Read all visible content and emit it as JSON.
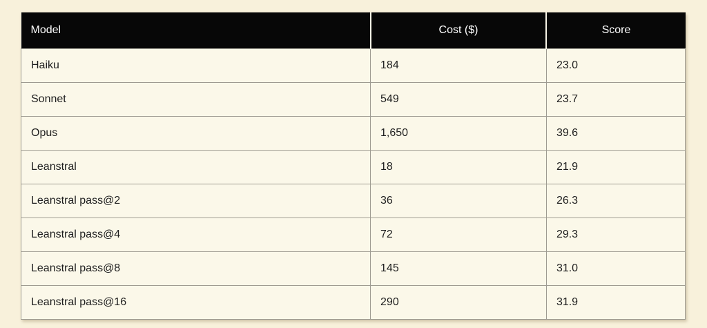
{
  "chart_data": {
    "type": "table",
    "columns": [
      "Model",
      "Cost ($)",
      "Score"
    ],
    "rows": [
      [
        "Haiku",
        "184",
        "23.0"
      ],
      [
        "Sonnet",
        "549",
        "23.7"
      ],
      [
        "Opus",
        "1,650",
        "39.6"
      ],
      [
        "Leanstral",
        "18",
        "21.9"
      ],
      [
        "Leanstral pass@2",
        "36",
        "26.3"
      ],
      [
        "Leanstral pass@4",
        "72",
        "29.3"
      ],
      [
        "Leanstral pass@8",
        "145",
        "31.0"
      ],
      [
        "Leanstral pass@16",
        "290",
        "31.9"
      ]
    ],
    "column_alignment": [
      "left",
      "center",
      "center"
    ],
    "cell_alignment": "left",
    "legend": "none",
    "grid": "on"
  },
  "colors": {
    "page_background": "#f8f1db",
    "cell_background": "#fbf8e9",
    "header_background": "#070707",
    "header_text": "#ffffff",
    "body_text": "#1e1e1e",
    "grid_border": "#9e9b91",
    "header_separator": "#f9f5e7"
  }
}
